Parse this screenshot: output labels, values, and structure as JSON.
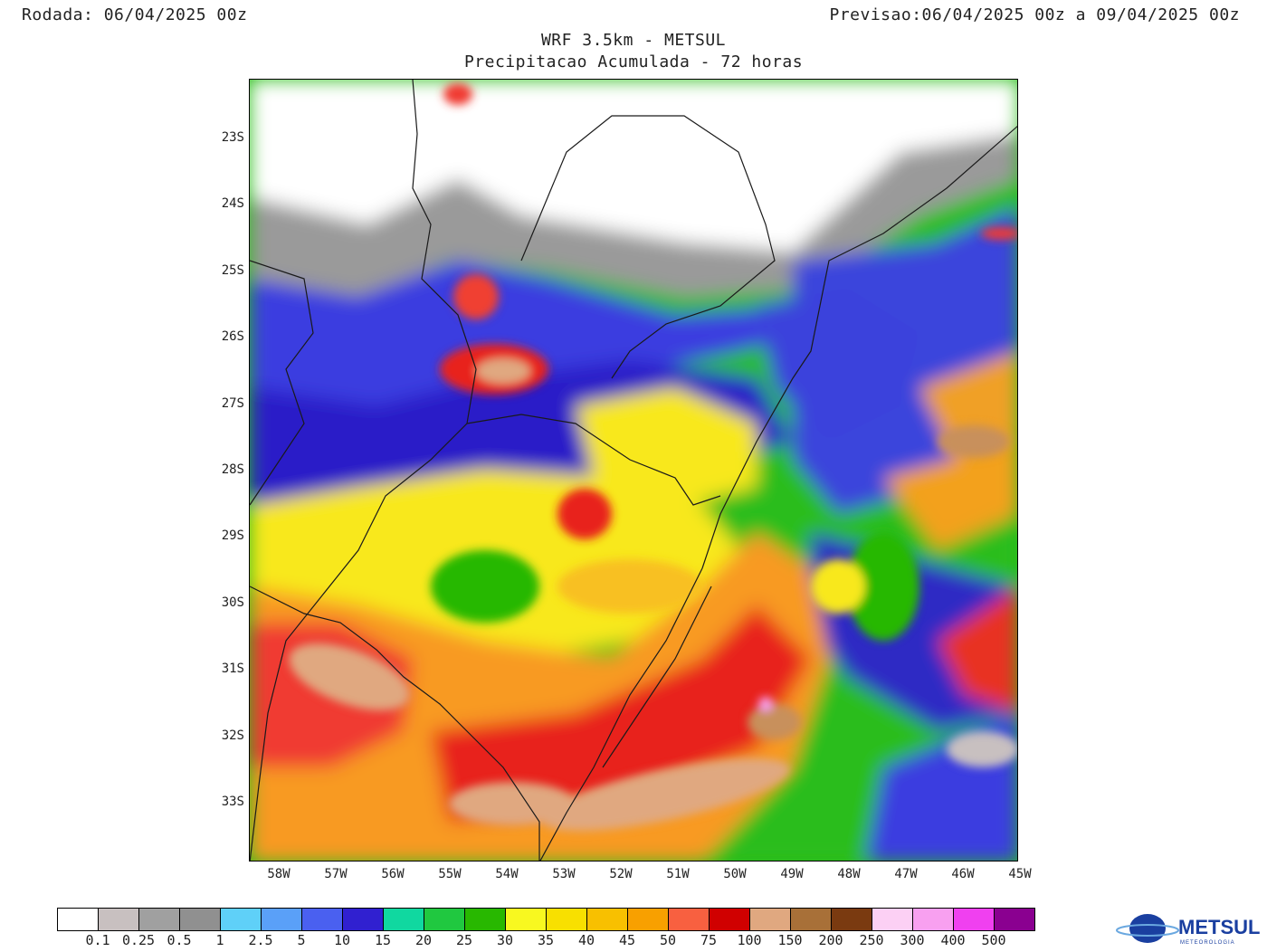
{
  "header": {
    "run_label": "Rodada:",
    "run_value": "06/04/2025 00z",
    "forecast_label": "Previsao:",
    "forecast_value": "06/04/2025 00z a 09/04/2025 00z"
  },
  "title": "WRF 3.5km - METSUL",
  "subtitle": "Precipitacao Acumulada - 72 horas",
  "axes": {
    "lat_labels": [
      "23S",
      "24S",
      "25S",
      "26S",
      "27S",
      "28S",
      "29S",
      "30S",
      "31S",
      "32S",
      "33S"
    ],
    "lon_labels": [
      "58W",
      "57W",
      "56W",
      "55W",
      "54W",
      "53W",
      "52W",
      "51W",
      "50W",
      "49W",
      "48W",
      "47W",
      "46W",
      "45W"
    ]
  },
  "colorbar": {
    "colors": [
      "#ffffff",
      "#c8c0c0",
      "#a0a0a0",
      "#909090",
      "#5fd0f8",
      "#5aa0f8",
      "#4a60f0",
      "#3020d0",
      "#10d8a0",
      "#20c840",
      "#28b800",
      "#f8f820",
      "#f8e000",
      "#f8c000",
      "#f8a000",
      "#f86040",
      "#d00000",
      "#e0a880",
      "#a87038",
      "#7a3a10",
      "#fcd0f4",
      "#f8a0f0",
      "#f040f0",
      "#8a0090"
    ],
    "labels": [
      "0.1",
      "0.25",
      "0.5",
      "1",
      "2.5",
      "5",
      "10",
      "15",
      "20",
      "25",
      "30",
      "35",
      "40",
      "45",
      "50",
      "75",
      "100",
      "150",
      "200",
      "250",
      "300",
      "400",
      "500"
    ]
  },
  "logo": {
    "brand": "METSUL",
    "tagline": "METEOROLOGIA"
  }
}
